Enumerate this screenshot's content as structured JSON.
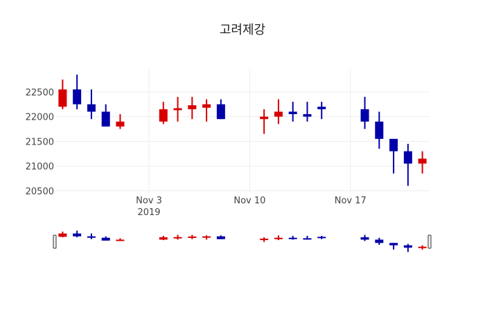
{
  "chart_data": {
    "type": "candlestick",
    "title": "고려제강",
    "xlabel": "",
    "ylabel": "",
    "increasing_color": "#d60000",
    "decreasing_color": "#0000a8",
    "x_ticks": [
      {
        "date": "2019-11-03",
        "label": "Nov 3",
        "sublabel": "2019"
      },
      {
        "date": "2019-11-10",
        "label": "Nov 10"
      },
      {
        "date": "2019-11-17",
        "label": "Nov 17"
      }
    ],
    "y_ticks": [
      20500,
      21000,
      21500,
      22000,
      22500
    ],
    "ylim": [
      20470,
      22960
    ],
    "xlim": [
      "2019-10-27T12:00",
      "2019-11-22T12:00"
    ],
    "grid": true,
    "rangeslider": true,
    "candles": [
      {
        "date": "2019-10-28",
        "open": 22200,
        "high": 22750,
        "low": 22150,
        "close": 22550
      },
      {
        "date": "2019-10-29",
        "open": 22550,
        "high": 22850,
        "low": 22150,
        "close": 22250
      },
      {
        "date": "2019-10-30",
        "open": 22250,
        "high": 22550,
        "low": 21950,
        "close": 22100
      },
      {
        "date": "2019-10-31",
        "open": 22100,
        "high": 22250,
        "low": 21800,
        "close": 21800
      },
      {
        "date": "2019-11-01",
        "open": 21800,
        "high": 22050,
        "low": 21750,
        "close": 21900
      },
      {
        "date": "2019-11-04",
        "open": 21900,
        "high": 22300,
        "low": 21850,
        "close": 22150
      },
      {
        "date": "2019-11-05",
        "open": 22130,
        "high": 22400,
        "low": 21900,
        "close": 22170
      },
      {
        "date": "2019-11-06",
        "open": 22150,
        "high": 22400,
        "low": 21950,
        "close": 22230
      },
      {
        "date": "2019-11-07",
        "open": 22180,
        "high": 22350,
        "low": 21900,
        "close": 22250
      },
      {
        "date": "2019-11-08",
        "open": 22250,
        "high": 22350,
        "low": 21950,
        "close": 21950
      },
      {
        "date": "2019-11-11",
        "open": 21950,
        "high": 22150,
        "low": 21650,
        "close": 22000
      },
      {
        "date": "2019-11-12",
        "open": 22000,
        "high": 22350,
        "low": 21850,
        "close": 22100
      },
      {
        "date": "2019-11-13",
        "open": 22100,
        "high": 22300,
        "low": 21900,
        "close": 22050
      },
      {
        "date": "2019-11-14",
        "open": 22050,
        "high": 22300,
        "low": 21900,
        "close": 22000
      },
      {
        "date": "2019-11-15",
        "open": 22200,
        "high": 22300,
        "low": 21950,
        "close": 22150
      },
      {
        "date": "2019-11-18",
        "open": 22150,
        "high": 22400,
        "low": 21750,
        "close": 21900
      },
      {
        "date": "2019-11-19",
        "open": 21900,
        "high": 22100,
        "low": 21350,
        "close": 21550
      },
      {
        "date": "2019-11-20",
        "open": 21550,
        "high": 21550,
        "low": 20850,
        "close": 21300
      },
      {
        "date": "2019-11-21",
        "open": 21300,
        "high": 21450,
        "low": 20600,
        "close": 21050
      },
      {
        "date": "2019-11-22",
        "open": 21050,
        "high": 21300,
        "low": 20850,
        "close": 21150
      }
    ]
  }
}
